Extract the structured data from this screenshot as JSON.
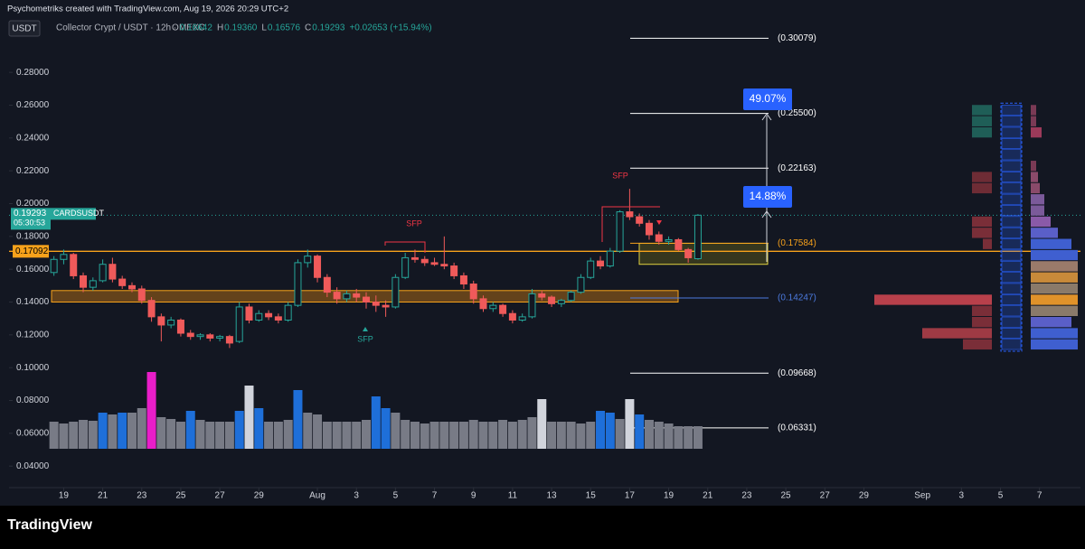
{
  "header": {
    "credit": "Psychometriks created with TradingView.com, Aug 19, 2026 20:29 UTC+2",
    "currency": "USDT",
    "symbol_title": "Collector Crypt / USDT · 12h · MEXC",
    "ohlc": [
      {
        "key": "O",
        "value": "0.16642"
      },
      {
        "key": "H",
        "value": "0.19360"
      },
      {
        "key": "L",
        "value": "0.16576"
      },
      {
        "key": "C",
        "value": "0.19293"
      }
    ],
    "change": "+0.02653 (+15.94%)"
  },
  "footer": {
    "logo": "TradingView"
  },
  "chart_data": {
    "type": "candlestick",
    "x": [
      -13.5,
      -13,
      -12.5,
      -12,
      -11.5,
      -11,
      -10.5,
      -10,
      -9.5,
      -9,
      -8.5,
      -8,
      -7.5,
      -7,
      -6.5,
      -6,
      -5.5,
      -5,
      -4.5,
      -4,
      -3.5,
      -3,
      -2.5,
      -2,
      -1.5,
      -1,
      -0.5,
      0,
      0.5,
      1,
      1.5,
      2,
      2.5,
      3,
      3.5,
      4,
      4.5,
      5,
      5.5,
      6,
      6.5,
      7,
      7.5,
      8,
      8.5,
      9,
      9.5,
      10,
      10.5,
      11,
      11.5,
      12,
      12.5,
      13,
      13.5,
      14,
      14.5,
      15,
      15.5,
      16,
      16.5,
      17,
      17.5,
      18,
      18.5,
      19,
      19.5
    ],
    "open": [
      0.158,
      0.166,
      0.169,
      0.156,
      0.149,
      0.153,
      0.163,
      0.154,
      0.15,
      0.148,
      0.141,
      0.131,
      0.126,
      0.129,
      0.121,
      0.119,
      0.12,
      0.118,
      0.119,
      0.116,
      0.137,
      0.129,
      0.133,
      0.131,
      0.129,
      0.138,
      0.164,
      0.168,
      0.155,
      0.146,
      0.142,
      0.145,
      0.143,
      0.14,
      0.138,
      0.137,
      0.155,
      0.167,
      0.166,
      0.164,
      0.163,
      0.162,
      0.156,
      0.151,
      0.142,
      0.136,
      0.138,
      0.133,
      0.129,
      0.131,
      0.145,
      0.143,
      0.139,
      0.141,
      0.146,
      0.155,
      0.165,
      0.162,
      0.171,
      0.195,
      0.192,
      0.188,
      0.181,
      0.177,
      0.178,
      0.172,
      0.16642
    ],
    "high": [
      0.168,
      0.172,
      0.17,
      0.158,
      0.155,
      0.166,
      0.167,
      0.156,
      0.152,
      0.15,
      0.143,
      0.133,
      0.131,
      0.13,
      0.123,
      0.121,
      0.121,
      0.12,
      0.12,
      0.14,
      0.139,
      0.135,
      0.135,
      0.133,
      0.14,
      0.166,
      0.172,
      0.169,
      0.157,
      0.149,
      0.147,
      0.148,
      0.146,
      0.144,
      0.141,
      0.157,
      0.17,
      0.172,
      0.168,
      0.167,
      0.18,
      0.164,
      0.158,
      0.153,
      0.144,
      0.14,
      0.139,
      0.135,
      0.133,
      0.148,
      0.147,
      0.144,
      0.142,
      0.147,
      0.157,
      0.167,
      0.168,
      0.173,
      0.196,
      0.209,
      0.194,
      0.19,
      0.183,
      0.18,
      0.179,
      0.173,
      0.1936
    ],
    "low": [
      0.156,
      0.163,
      0.154,
      0.146,
      0.147,
      0.152,
      0.152,
      0.148,
      0.146,
      0.139,
      0.128,
      0.116,
      0.124,
      0.119,
      0.117,
      0.117,
      0.116,
      0.116,
      0.112,
      0.115,
      0.127,
      0.128,
      0.129,
      0.127,
      0.128,
      0.137,
      0.161,
      0.152,
      0.143,
      0.139,
      0.14,
      0.14,
      0.136,
      0.134,
      0.131,
      0.136,
      0.154,
      0.164,
      0.162,
      0.162,
      0.16,
      0.154,
      0.148,
      0.139,
      0.134,
      0.134,
      0.131,
      0.127,
      0.128,
      0.13,
      0.141,
      0.137,
      0.137,
      0.14,
      0.145,
      0.154,
      0.16,
      0.161,
      0.17,
      0.19,
      0.186,
      0.178,
      0.175,
      0.175,
      0.171,
      0.164,
      0.16576
    ],
    "close": [
      0.166,
      0.169,
      0.156,
      0.149,
      0.153,
      0.163,
      0.154,
      0.15,
      0.148,
      0.141,
      0.131,
      0.126,
      0.129,
      0.121,
      0.119,
      0.12,
      0.118,
      0.119,
      0.115,
      0.137,
      0.129,
      0.133,
      0.131,
      0.129,
      0.138,
      0.164,
      0.168,
      0.155,
      0.146,
      0.142,
      0.145,
      0.143,
      0.14,
      0.138,
      0.137,
      0.155,
      0.167,
      0.166,
      0.164,
      0.163,
      0.162,
      0.156,
      0.151,
      0.142,
      0.136,
      0.138,
      0.133,
      0.129,
      0.131,
      0.145,
      0.143,
      0.139,
      0.141,
      0.146,
      0.155,
      0.165,
      0.162,
      0.171,
      0.195,
      0.192,
      0.188,
      0.181,
      0.177,
      0.178,
      0.172,
      0.167,
      0.19293
    ],
    "volume": [
      30,
      28,
      30,
      32,
      31,
      40,
      38,
      40,
      40,
      45,
      85,
      35,
      33,
      30,
      42,
      32,
      30,
      30,
      30,
      42,
      70,
      45,
      30,
      30,
      32,
      65,
      40,
      38,
      30,
      30,
      30,
      30,
      32,
      58,
      45,
      40,
      32,
      30,
      28,
      30,
      30,
      30,
      30,
      32,
      30,
      30,
      32,
      30,
      32,
      35,
      55,
      30,
      30,
      30,
      28,
      30,
      42,
      40,
      33,
      55,
      38,
      32,
      30,
      28,
      25,
      25,
      25
    ],
    "volume_colors": [
      "#787b86",
      "#787b86",
      "#787b86",
      "#787b86",
      "#787b86",
      "#1e6fd9",
      "#787b86",
      "#1e6fd9",
      "#787b86",
      "#787b86",
      "#e91ec9",
      "#787b86",
      "#787b86",
      "#787b86",
      "#1e6fd9",
      "#787b86",
      "#787b86",
      "#787b86",
      "#787b86",
      "#1e6fd9",
      "#d1d4dc",
      "#1e6fd9",
      "#787b86",
      "#787b86",
      "#787b86",
      "#1e6fd9",
      "#787b86",
      "#787b86",
      "#787b86",
      "#787b86",
      "#787b86",
      "#787b86",
      "#787b86",
      "#1e6fd9",
      "#1e6fd9",
      "#787b86",
      "#787b86",
      "#787b86",
      "#787b86",
      "#787b86",
      "#787b86",
      "#787b86",
      "#787b86",
      "#787b86",
      "#787b86",
      "#787b86",
      "#787b86",
      "#787b86",
      "#787b86",
      "#787b86",
      "#d1d4dc",
      "#787b86",
      "#787b86",
      "#787b86",
      "#787b86",
      "#787b86",
      "#1e6fd9",
      "#1e6fd9",
      "#787b86",
      "#d1d4dc",
      "#1e6fd9",
      "#787b86",
      "#787b86",
      "#787b86",
      "#787b86",
      "#787b86",
      "#787b86"
    ],
    "up_color": "#26a69a",
    "down_color": "#f05a5a",
    "xlim": [
      -15.8,
      39.1
    ],
    "xticks": [
      {
        "value": -13,
        "label": "19"
      },
      {
        "value": -11,
        "label": "21"
      },
      {
        "value": -9,
        "label": "23"
      },
      {
        "value": -7,
        "label": "25"
      },
      {
        "value": -5,
        "label": "27"
      },
      {
        "value": -3,
        "label": "29"
      },
      {
        "value": 0,
        "label": "Aug"
      },
      {
        "value": 2,
        "label": "3"
      },
      {
        "value": 4,
        "label": "5"
      },
      {
        "value": 6,
        "label": "7"
      },
      {
        "value": 8,
        "label": "9"
      },
      {
        "value": 10,
        "label": "11"
      },
      {
        "value": 12,
        "label": "13"
      },
      {
        "value": 14,
        "label": "15"
      },
      {
        "value": 16,
        "label": "17"
      },
      {
        "value": 18,
        "label": "19"
      },
      {
        "value": 20,
        "label": "21"
      },
      {
        "value": 22,
        "label": "23"
      },
      {
        "value": 24,
        "label": "25"
      },
      {
        "value": 26,
        "label": "27"
      },
      {
        "value": 28,
        "label": "29"
      },
      {
        "value": 31,
        "label": "Sep"
      },
      {
        "value": 33,
        "label": "3"
      },
      {
        "value": 35,
        "label": "5"
      },
      {
        "value": 37,
        "label": "7"
      }
    ],
    "ylim": [
      0.028,
      0.312
    ],
    "yticks": [
      {
        "value": 0.28,
        "label": "0.28000"
      },
      {
        "value": 0.26,
        "label": "0.26000"
      },
      {
        "value": 0.24,
        "label": "0.24000"
      },
      {
        "value": 0.22,
        "label": "0.22000"
      },
      {
        "value": 0.2,
        "label": "0.20000"
      },
      {
        "value": 0.18,
        "label": "0.18000"
      },
      {
        "value": 0.16,
        "label": "0.16000"
      },
      {
        "value": 0.14,
        "label": "0.14000"
      },
      {
        "value": 0.12,
        "label": "0.12000"
      },
      {
        "value": 0.1,
        "label": "0.10000"
      },
      {
        "value": 0.08,
        "label": "0.08000"
      },
      {
        "value": 0.06,
        "label": "0.06000"
      },
      {
        "value": 0.04,
        "label": "0.04000"
      }
    ],
    "levels": [
      {
        "price": 0.30079,
        "label": "(0.30079)",
        "color": "#ffffff"
      },
      {
        "price": 0.255,
        "label": "(0.25500)",
        "color": "#ffffff"
      },
      {
        "price": 0.22163,
        "label": "(0.22163)",
        "color": "#ffffff"
      },
      {
        "price": 0.17584,
        "label": "(0.17584)",
        "color": "#f7a21b"
      },
      {
        "price": 0.14247,
        "label": "(0.14247)",
        "color": "#4c7be0"
      },
      {
        "price": 0.09668,
        "label": "(0.09668)",
        "color": "#ffffff"
      },
      {
        "price": 0.06331,
        "label": "(0.06331)",
        "color": "#ffffff"
      }
    ],
    "targets": [
      "49.07%",
      "14.88%"
    ],
    "annotations": [
      {
        "text": "SFP",
        "color": "#f23645"
      },
      {
        "text": "SFP",
        "color": "#f23645"
      },
      {
        "text": "SFP",
        "color": "#26a69a"
      }
    ],
    "current_price": {
      "value": 0.19293,
      "timer": "05:30:53",
      "symbol": "CARDSUSDT"
    },
    "key_level": 0.17092,
    "zone": [
      0.14,
      0.147
    ],
    "box": [
      0.163,
      0.1758
    ],
    "profile_prices": [
      0.257,
      0.2502,
      0.2434,
      0.2366,
      0.2298,
      0.223,
      0.2162,
      0.2094,
      0.2026,
      0.1958,
      0.189,
      0.1822,
      0.1754,
      0.1686,
      0.1618,
      0.155,
      0.1482,
      0.1414,
      0.1346,
      0.1278,
      0.121,
      0.1142
    ],
    "profile_left": [
      22,
      22,
      22,
      0,
      0,
      0,
      22,
      22,
      0,
      0,
      22,
      22,
      10,
      0,
      0,
      0,
      0,
      130,
      22,
      22,
      77,
      32
    ],
    "profile_left_colors": [
      "#1f5e57",
      "#1f5e57",
      "#1f5e57",
      "#5a2a33",
      "#5a2a33",
      "#5a2a33",
      "#6e2c35",
      "#6e2c35",
      "#6e2c35",
      "#6e2c35",
      "#7a2e38",
      "#7a2e38",
      "#7a2e38",
      "#7a2e38",
      "#7a2e38",
      "#7a2e38",
      "#7a2e38",
      "#b8404b",
      "#7a2e38",
      "#7a2e38",
      "#9e3a44",
      "#7a2e38"
    ],
    "profile_right": [
      6,
      6,
      12,
      0,
      0,
      6,
      8,
      10,
      15,
      15,
      22,
      30,
      45,
      52,
      52,
      52,
      52,
      52,
      52,
      45,
      52,
      52
    ],
    "profile_right_colors": [
      "#7a3a55",
      "#7a3a55",
      "#9c3a5a",
      "#7a3a55",
      "#7a3a55",
      "#7a3a55",
      "#8a4a6a",
      "#8a4a6a",
      "#7b5a9a",
      "#7b5a9a",
      "#8a5aa8",
      "#5a5fc8",
      "#3f5fd0",
      "#3f5fd0",
      "#9a7a6a",
      "#c88a3a",
      "#8a7a6a",
      "#e0922a",
      "#8a7a6a",
      "#5a5fc8",
      "#3f5fd0",
      "#3f5fd0"
    ]
  }
}
